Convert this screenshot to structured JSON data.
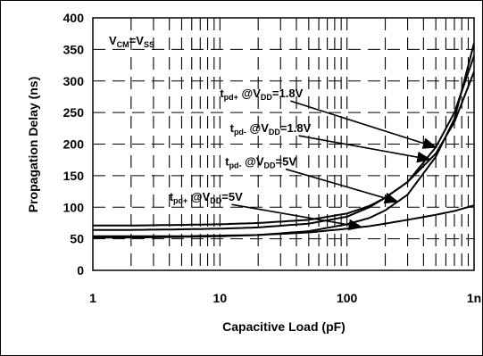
{
  "chart_data": {
    "type": "line",
    "xlabel": "Capacitive Load (pF)",
    "ylabel": "Propagation Delay (ns)",
    "x_scale": "log",
    "xlim": [
      1,
      1000
    ],
    "ylim": [
      0,
      400
    ],
    "x_ticks": [
      1,
      10,
      100,
      1000
    ],
    "x_tick_labels": [
      "1",
      "10",
      "100",
      "1n"
    ],
    "y_ticks": [
      0,
      50,
      100,
      150,
      200,
      250,
      300,
      350,
      400
    ],
    "y_tick_labels": [
      "0",
      "50",
      "100",
      "150",
      "200",
      "250",
      "300",
      "350",
      "400"
    ],
    "grid": true,
    "grid_style": "dashed",
    "condition_label": {
      "base1": "V",
      "sub1": "CM",
      "mid": "=V",
      "sub2": "SS"
    },
    "series": [
      {
        "key": "tpd_plus_1v8",
        "x": [
          1,
          2,
          5,
          10,
          20,
          50,
          100,
          150,
          200,
          300,
          500,
          700,
          1000
        ],
        "y": [
          71,
          71,
          72,
          73,
          75,
          80,
          90,
          102,
          115,
          140,
          195,
          250,
          340
        ],
        "label": {
          "t": "t",
          "sub": "pd+",
          "rest": " @V",
          "sub2": "DD",
          "tail": "=1.8V"
        },
        "label_x": 10,
        "label_y": 274,
        "arrow_to_x": 500
      },
      {
        "key": "tpd_minus_1v8",
        "x": [
          1,
          2,
          5,
          10,
          20,
          50,
          100,
          150,
          200,
          300,
          500,
          700,
          1000
        ],
        "y": [
          64,
          64,
          65,
          66,
          68,
          74,
          85,
          100,
          115,
          140,
          185,
          235,
          315
        ],
        "label": {
          "t": "t",
          "sub": "pd-",
          "rest": " @V",
          "sub2": "DD",
          "tail": "=1.8V"
        },
        "label_x": 12,
        "label_y": 219,
        "arrow_to_x": 450
      },
      {
        "key": "tpd_minus_5v",
        "x": [
          1,
          2,
          5,
          10,
          20,
          50,
          100,
          150,
          200,
          300,
          500,
          700,
          1000
        ],
        "y": [
          52,
          52,
          53,
          54,
          56,
          62,
          73,
          83,
          95,
          120,
          180,
          240,
          360
        ],
        "label": {
          "t": "t",
          "sub": "pd-",
          "rest": " @V",
          "sub2": "DD",
          "tail": "=5V"
        },
        "label_x": 11,
        "label_y": 166,
        "arrow_to_x": 250
      },
      {
        "key": "tpd_plus_5v",
        "x": [
          1,
          2,
          5,
          10,
          20,
          50,
          100,
          150,
          200,
          300,
          500,
          700,
          1000
        ],
        "y": [
          54,
          54,
          54,
          55,
          56,
          60,
          66,
          70,
          74,
          80,
          88,
          94,
          103
        ],
        "label": {
          "t": "t",
          "sub": "pd+",
          "rest": " @V",
          "sub2": "DD",
          "tail": "=5V"
        },
        "label_x": 4,
        "label_y": 110,
        "arrow_to_x": 130
      }
    ]
  }
}
